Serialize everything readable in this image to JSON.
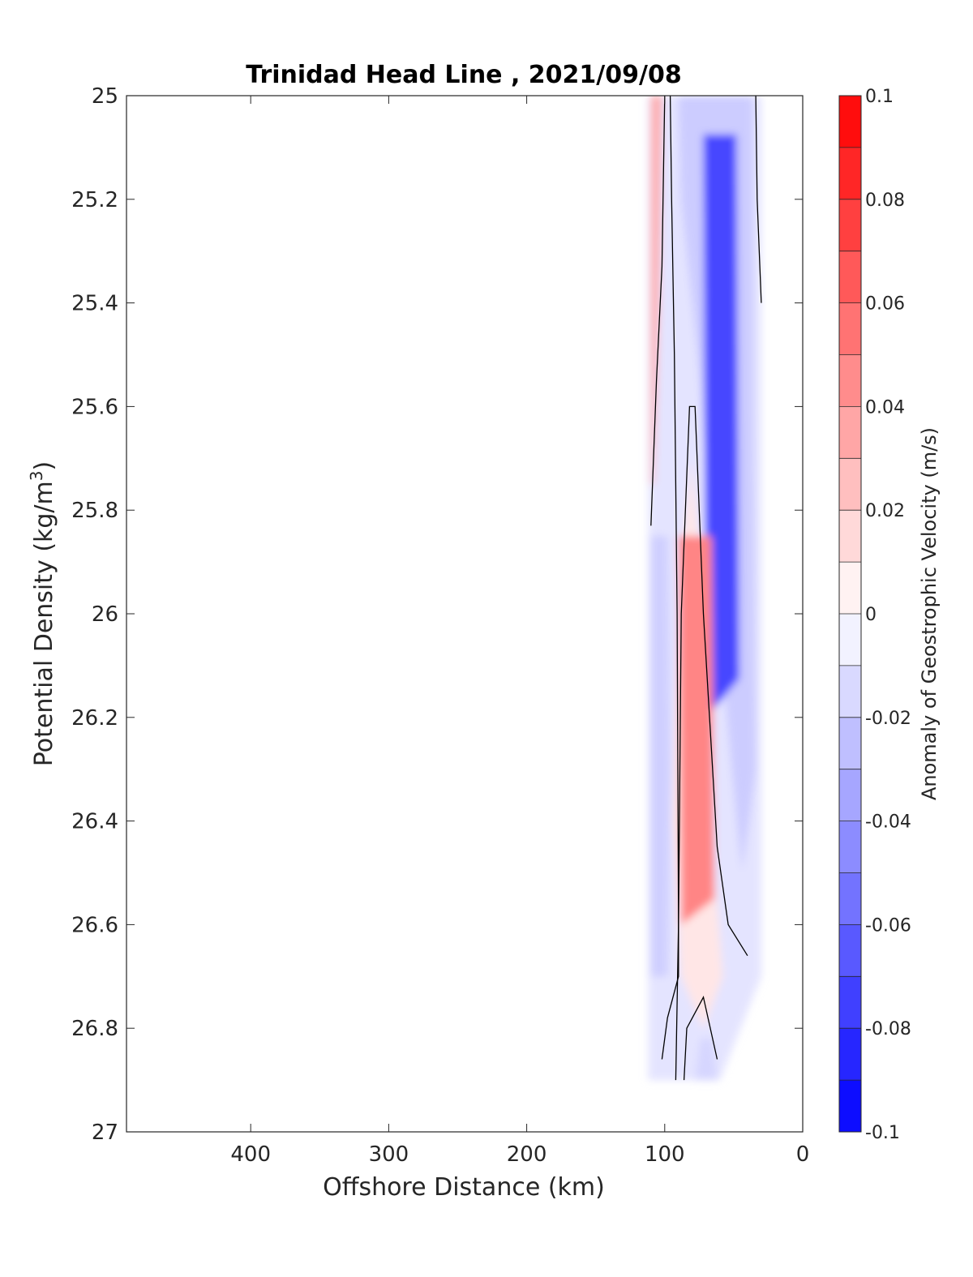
{
  "chart_data": {
    "type": "heatmap",
    "title": "Trinidad Head Line , 2021/09/08",
    "xlabel": "Offshore Distance (km)",
    "ylabel_main": "Potential Density (kg/m",
    "ylabel_sup": "3",
    "ylabel_tail": ")",
    "x_reversed": true,
    "xlim": [
      0,
      490
    ],
    "ylim": [
      25,
      27
    ],
    "y_reversed": true,
    "x_ticks": [
      400,
      300,
      200,
      100,
      0
    ],
    "y_ticks": [
      25,
      25.2,
      25.4,
      25.6,
      25.8,
      26,
      26.2,
      26.4,
      26.6,
      26.8,
      27
    ],
    "y_tick_labels": [
      "25",
      "25.2",
      "25.4",
      "25.6",
      "25.8",
      "26",
      "26.2",
      "26.4",
      "26.6",
      "26.8",
      "27"
    ],
    "colorbar": {
      "label": "Anomaly of Geostrophic Velocity (m/s)",
      "ticks": [
        0.1,
        0.08,
        0.06,
        0.04,
        0.02,
        0,
        -0.02,
        -0.04,
        -0.06,
        -0.08,
        -0.1
      ],
      "tick_labels": [
        "0.1",
        "0.08",
        "0.06",
        "0.04",
        "0.02",
        "0",
        "-0.02",
        "-0.04",
        "-0.06",
        "-0.08",
        "-0.1"
      ],
      "levels": [
        -0.1,
        -0.09,
        -0.08,
        -0.07,
        -0.06,
        -0.05,
        -0.04,
        -0.03,
        -0.02,
        -0.01,
        0,
        0.01,
        0.02,
        0.03,
        0.04,
        0.05,
        0.06,
        0.07,
        0.08,
        0.09,
        0.1
      ],
      "colormap": "blue-white-red"
    },
    "bands": [
      {
        "name": "nearshore-red-strip",
        "approx_x_km": [
          102,
          110
        ],
        "density_range": [
          25.0,
          25.75
        ],
        "value_range": [
          0.02,
          0.06
        ]
      },
      {
        "name": "surface-blue-core",
        "approx_x_km": [
          35,
          90
        ],
        "density_range": [
          25.0,
          26.5
        ],
        "value_range": [
          -0.09,
          -0.02
        ],
        "peak_x_km": 60,
        "peak_value": -0.09
      },
      {
        "name": "subsurface-red-core",
        "approx_x_km": [
          60,
          95
        ],
        "density_range": [
          25.8,
          26.8
        ],
        "value_range": [
          0.01,
          0.06
        ],
        "peak_x_km": 78,
        "peak_value": 0.06
      },
      {
        "name": "offshore-blue-strip",
        "approx_x_km": [
          98,
          110
        ],
        "density_range": [
          25.8,
          26.7
        ],
        "value_range": [
          -0.04,
          -0.01
        ]
      },
      {
        "name": "deep-blue-patch",
        "approx_x_km": [
          62,
          78
        ],
        "density_range": [
          26.82,
          26.9
        ],
        "value_range": [
          -0.03,
          -0.01
        ]
      }
    ],
    "zero_contours": [
      [
        [
          110,
          25.83
        ],
        [
          106,
          25.55
        ],
        [
          102,
          25.33
        ],
        [
          100,
          25.0
        ]
      ],
      [
        [
          96,
          25.0
        ],
        [
          95,
          25.2
        ],
        [
          93,
          25.5
        ],
        [
          91,
          26.0
        ],
        [
          90,
          26.6
        ],
        [
          90,
          26.7
        ],
        [
          98,
          26.78
        ],
        [
          102,
          26.86
        ]
      ],
      [
        [
          86,
          26.9
        ],
        [
          84,
          26.8
        ],
        [
          72,
          26.74
        ],
        [
          62,
          26.86
        ]
      ],
      [
        [
          92,
          26.9
        ],
        [
          90,
          26.6
        ],
        [
          88,
          26.0
        ],
        [
          82,
          25.6
        ],
        [
          78,
          25.6
        ],
        [
          72,
          26.0
        ],
        [
          62,
          26.45
        ],
        [
          54,
          26.6
        ],
        [
          40,
          26.66
        ]
      ],
      [
        [
          34,
          25.0
        ],
        [
          33,
          25.2
        ],
        [
          30,
          25.4
        ]
      ]
    ]
  }
}
